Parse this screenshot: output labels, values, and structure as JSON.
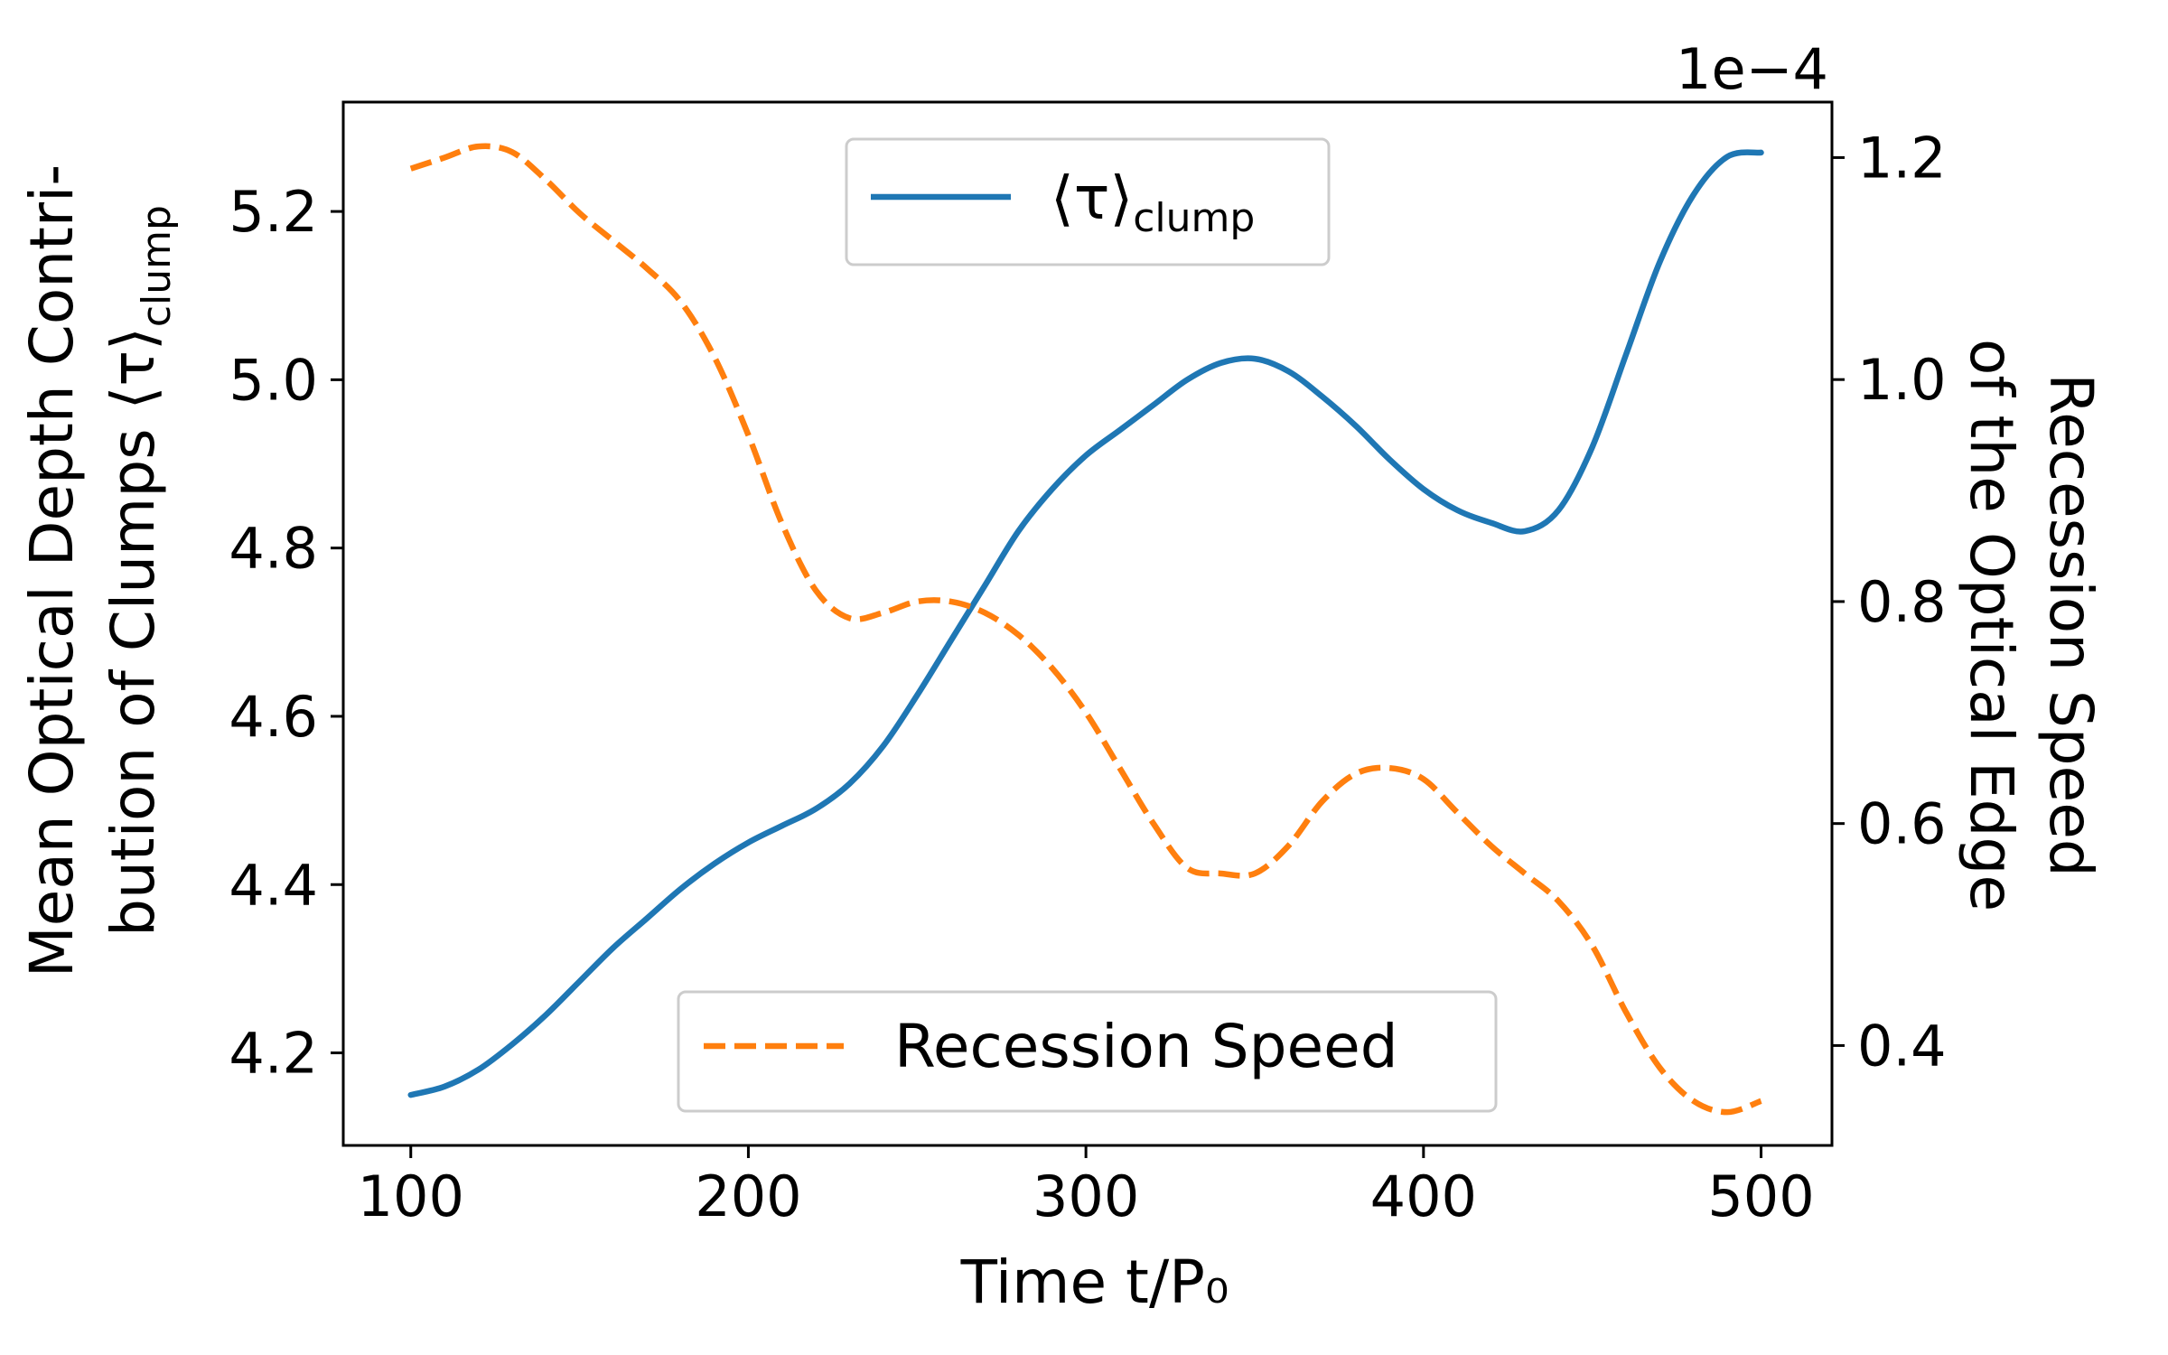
{
  "chart_data": {
    "type": "line",
    "xlabel": "Time t/P₀",
    "xlim": [
      80,
      521
    ],
    "xticks": [
      100,
      200,
      300,
      400,
      500
    ],
    "left_axis": {
      "label_line1": "Mean Optical Depth Contri-",
      "label_line2": "bution of Clumps ⟨τ⟩",
      "label_subscript": "clump",
      "ylim": [
        4.09,
        5.33
      ],
      "ticks": [
        "4.2",
        "4.4",
        "4.6",
        "4.8",
        "5.0",
        "5.2"
      ]
    },
    "right_axis": {
      "label_line1": "Recession Speed",
      "label_line2": "of the Optical Edge",
      "offset_text": "1e−4",
      "ylim": [
        0.31,
        1.25
      ],
      "ticks": [
        "0.4",
        "0.6",
        "0.8",
        "1.0",
        "1.2"
      ]
    },
    "series": [
      {
        "name": "⟨τ⟩clump",
        "axis": "left",
        "color": "#1f77b4",
        "style": "solid",
        "x": [
          100,
          110,
          120,
          130,
          140,
          150,
          160,
          170,
          180,
          190,
          200,
          210,
          220,
          230,
          240,
          250,
          260,
          270,
          280,
          290,
          300,
          310,
          320,
          330,
          340,
          350,
          360,
          370,
          380,
          390,
          400,
          410,
          420,
          430,
          440,
          450,
          460,
          470,
          480,
          490,
          500
        ],
        "y": [
          4.15,
          4.16,
          4.18,
          4.21,
          4.245,
          4.285,
          4.325,
          4.36,
          4.395,
          4.425,
          4.45,
          4.47,
          4.49,
          4.52,
          4.565,
          4.625,
          4.69,
          4.755,
          4.82,
          4.87,
          4.91,
          4.94,
          4.97,
          5.0,
          5.02,
          5.025,
          5.01,
          4.98,
          4.945,
          4.905,
          4.87,
          4.845,
          4.83,
          4.82,
          4.845,
          4.92,
          5.03,
          5.14,
          5.22,
          5.265,
          5.27
        ]
      },
      {
        "name": "Recession Speed",
        "axis": "right",
        "color": "#ff7f0e",
        "style": "dashed",
        "x": [
          100,
          110,
          120,
          130,
          140,
          150,
          160,
          170,
          180,
          190,
          200,
          210,
          220,
          230,
          240,
          250,
          260,
          270,
          280,
          290,
          300,
          310,
          320,
          330,
          340,
          350,
          360,
          370,
          380,
          390,
          400,
          410,
          420,
          430,
          440,
          450,
          460,
          470,
          480,
          490,
          500
        ],
        "y": [
          1.19,
          1.2,
          1.21,
          1.205,
          1.18,
          1.15,
          1.125,
          1.1,
          1.07,
          1.02,
          0.95,
          0.87,
          0.81,
          0.785,
          0.79,
          0.8,
          0.8,
          0.79,
          0.77,
          0.74,
          0.7,
          0.65,
          0.6,
          0.56,
          0.555,
          0.555,
          0.58,
          0.62,
          0.645,
          0.65,
          0.64,
          0.61,
          0.58,
          0.555,
          0.53,
          0.49,
          0.43,
          0.38,
          0.35,
          0.34,
          0.35
        ]
      }
    ],
    "legends": [
      {
        "label_main": "⟨τ⟩",
        "label_sub": "clump",
        "position": "upper-center"
      },
      {
        "label_main": "Recession Speed",
        "position": "lower-center"
      }
    ]
  }
}
